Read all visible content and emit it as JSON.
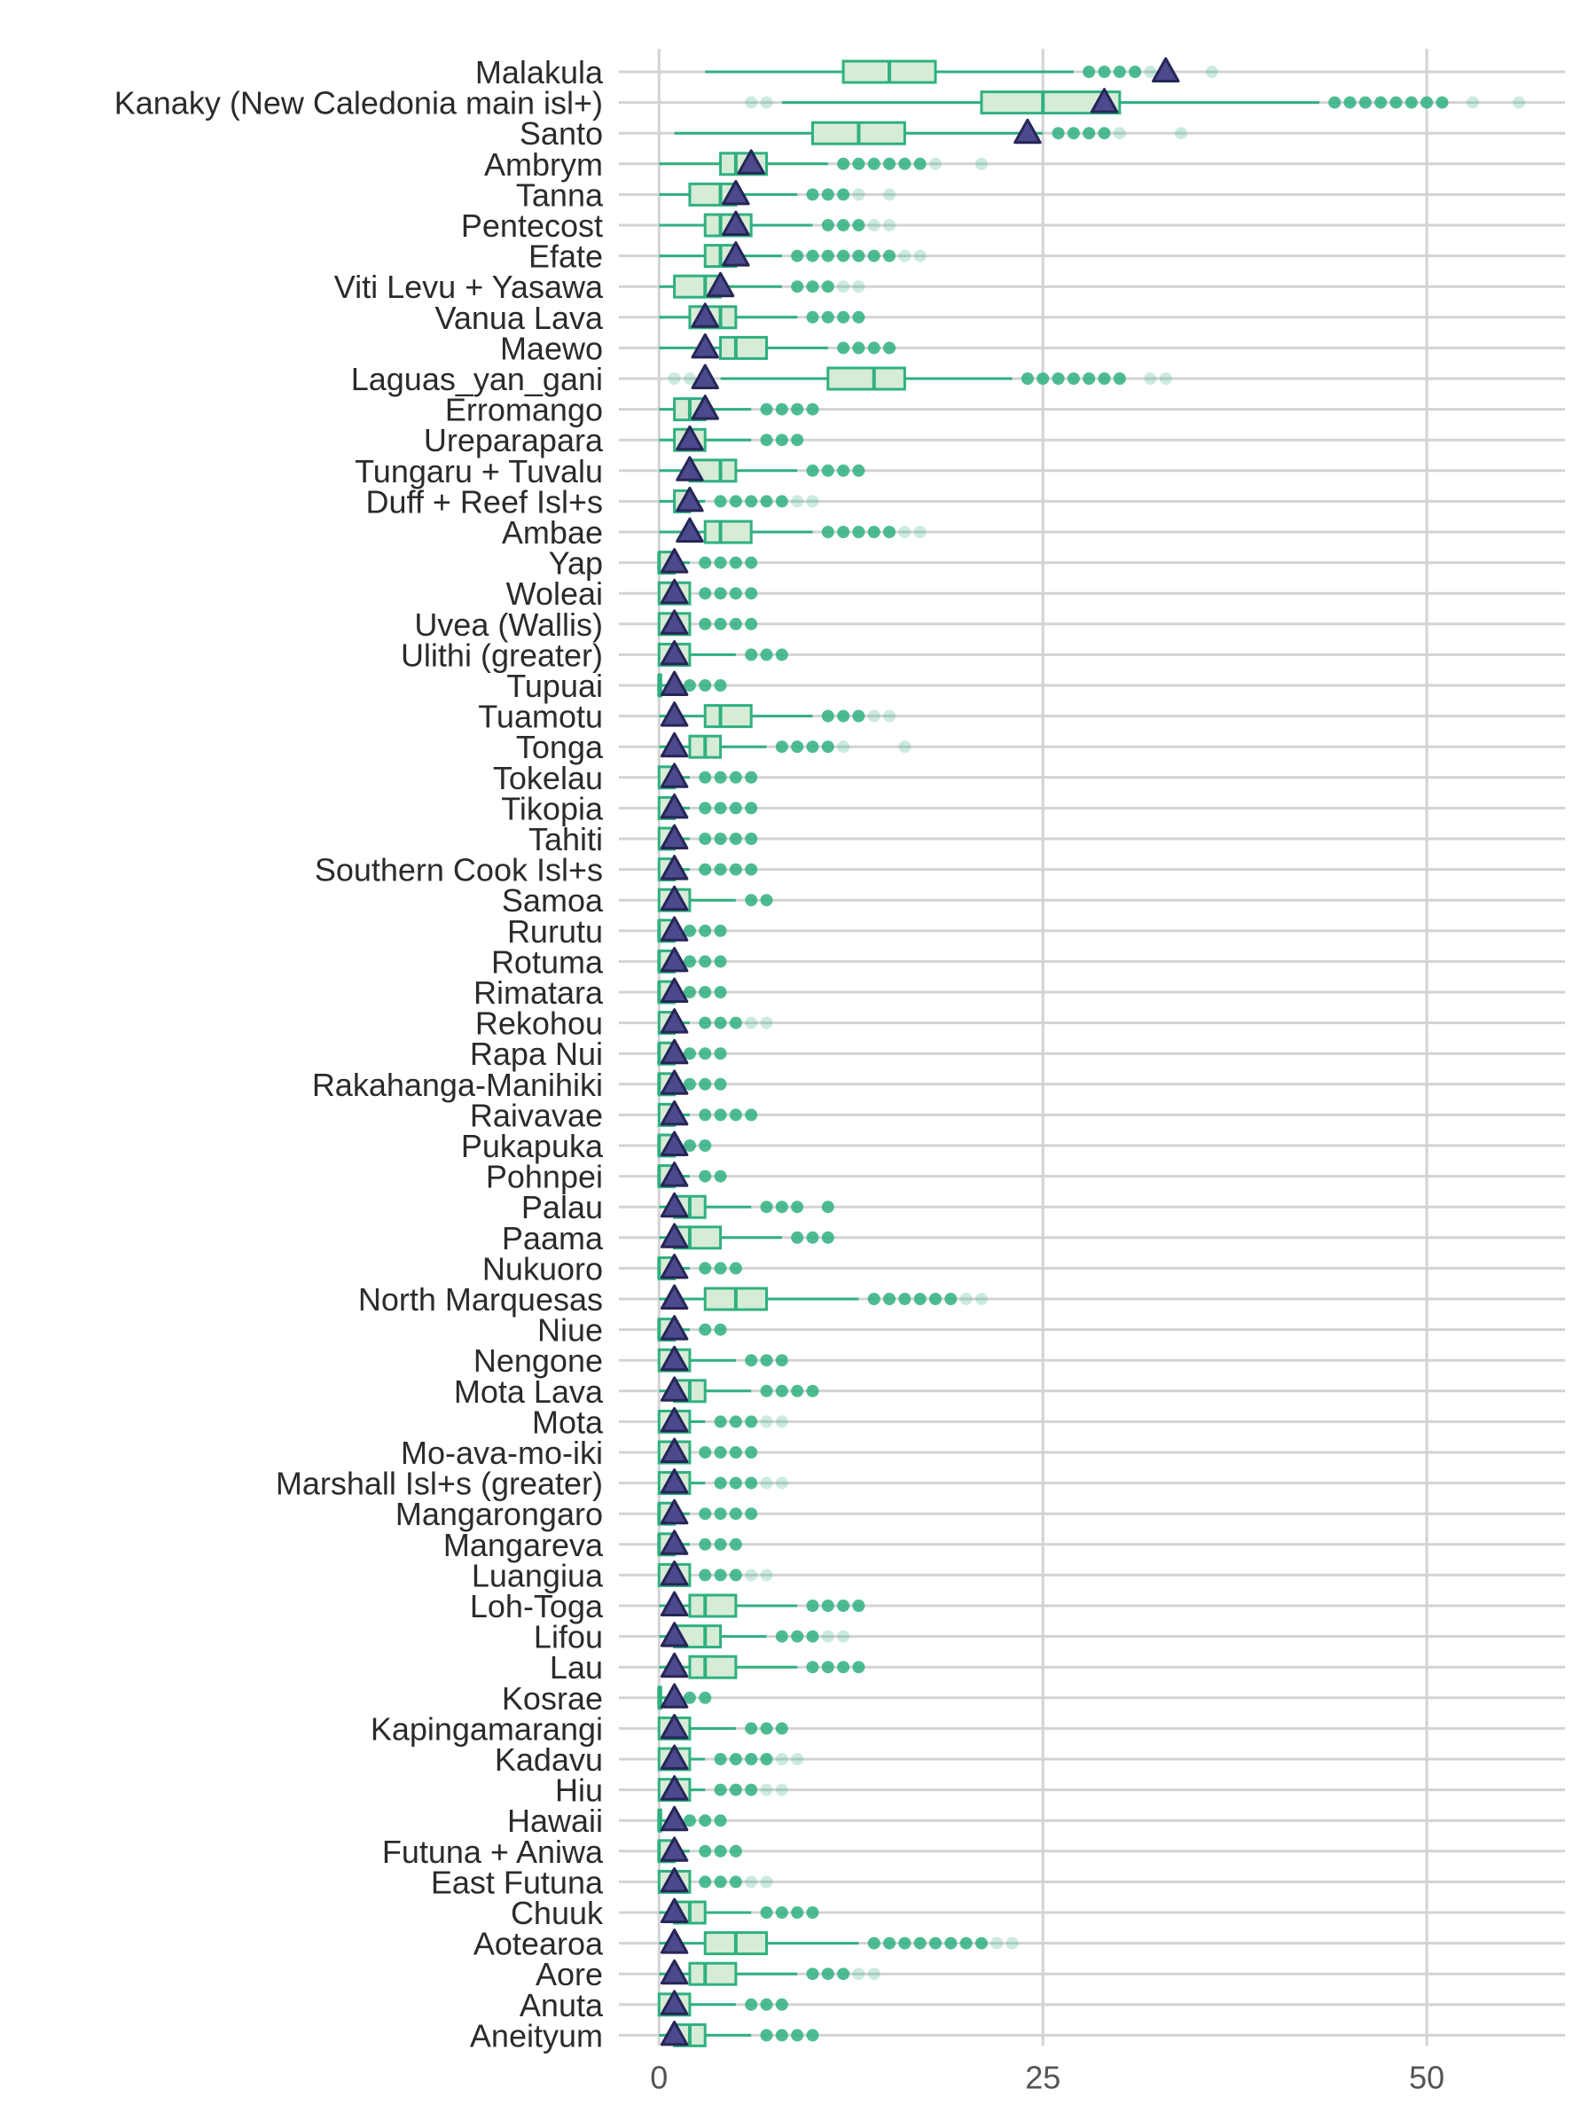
{
  "chart_data": {
    "type": "boxplot",
    "orientation": "horizontal",
    "title": "",
    "xlabel": "",
    "ylabel": "",
    "xlim": [
      -2.5,
      59
    ],
    "xticks": [
      0,
      25,
      50
    ],
    "xtick_labels": [
      "0",
      "25",
      "50"
    ],
    "grid": true,
    "legend": "none",
    "colors": {
      "box_fill": "#d6ecd6",
      "box_stroke": "#2fb07f",
      "whisker": "#2fb07f",
      "outlier": "#2fb07f",
      "mean_marker_fill": "#4a4a8c",
      "mean_marker_stroke": "#262657",
      "grid": "#d3d3d3"
    },
    "categories": [
      {
        "name": "Malakula",
        "q1": 12,
        "median": 15,
        "q3": 18,
        "wmin": 3,
        "wmax": 27,
        "mean": 33,
        "outliers": [
          28,
          29,
          30,
          31,
          32,
          36
        ]
      },
      {
        "name": "Kanaky (New Caledonia main isl+)",
        "q1": 21,
        "median": 25,
        "q3": 30,
        "wmin": 8,
        "wmax": 43,
        "mean": 29,
        "outliers": [
          6,
          7,
          44,
          45,
          46,
          47,
          48,
          49,
          50,
          51,
          53,
          56
        ]
      },
      {
        "name": "Santo",
        "q1": 10,
        "median": 13,
        "q3": 16,
        "wmin": 1,
        "wmax": 25,
        "mean": 24,
        "outliers": [
          26,
          27,
          28,
          29,
          30,
          34
        ]
      },
      {
        "name": "Ambrym",
        "q1": 4,
        "median": 5,
        "q3": 7,
        "wmin": 0,
        "wmax": 11,
        "mean": 6,
        "outliers": [
          12,
          13,
          14,
          15,
          16,
          17,
          18,
          21
        ]
      },
      {
        "name": "Tanna",
        "q1": 2,
        "median": 4,
        "q3": 5,
        "wmin": 0,
        "wmax": 9,
        "mean": 5,
        "outliers": [
          10,
          11,
          12,
          13,
          15
        ]
      },
      {
        "name": "Pentecost",
        "q1": 3,
        "median": 4,
        "q3": 6,
        "wmin": 0,
        "wmax": 10,
        "mean": 5,
        "outliers": [
          11,
          12,
          13,
          14,
          15
        ]
      },
      {
        "name": "Efate",
        "q1": 3,
        "median": 4,
        "q3": 5,
        "wmin": 0,
        "wmax": 8,
        "mean": 5,
        "outliers": [
          9,
          10,
          11,
          12,
          13,
          14,
          15,
          16,
          17
        ]
      },
      {
        "name": "Viti Levu + Yasawa",
        "q1": 1,
        "median": 3,
        "q3": 4,
        "wmin": 0,
        "wmax": 8,
        "mean": 4,
        "outliers": [
          9,
          10,
          11,
          12,
          13
        ]
      },
      {
        "name": "Vanua Lava",
        "q1": 2,
        "median": 4,
        "q3": 5,
        "wmin": 0,
        "wmax": 9,
        "mean": 3,
        "outliers": [
          10,
          11,
          12,
          13
        ]
      },
      {
        "name": "Maewo",
        "q1": 4,
        "median": 5,
        "q3": 7,
        "wmin": 0,
        "wmax": 11,
        "mean": 3,
        "outliers": [
          12,
          13,
          14,
          15
        ]
      },
      {
        "name": "Laguas_yan_gani",
        "q1": 11,
        "median": 14,
        "q3": 16,
        "wmin": 4,
        "wmax": 23,
        "mean": 3,
        "outliers": [
          1,
          2,
          24,
          25,
          26,
          27,
          28,
          29,
          30,
          32,
          33
        ]
      },
      {
        "name": "Erromango",
        "q1": 1,
        "median": 2,
        "q3": 3,
        "wmin": 0,
        "wmax": 6,
        "mean": 3,
        "outliers": [
          7,
          8,
          9,
          10
        ]
      },
      {
        "name": "Ureparapara",
        "q1": 1,
        "median": 2,
        "q3": 3,
        "wmin": 0,
        "wmax": 6,
        "mean": 2,
        "outliers": [
          7,
          8,
          9
        ]
      },
      {
        "name": "Tungaru + Tuvalu",
        "q1": 2,
        "median": 4,
        "q3": 5,
        "wmin": 0,
        "wmax": 9,
        "mean": 2,
        "outliers": [
          10,
          11,
          12,
          13
        ]
      },
      {
        "name": "Duff + Reef Isl+s",
        "q1": 1,
        "median": 2,
        "q3": 2,
        "wmin": 0,
        "wmax": 3,
        "mean": 2,
        "outliers": [
          4,
          5,
          6,
          7,
          8,
          9,
          10
        ]
      },
      {
        "name": "Ambae",
        "q1": 3,
        "median": 4,
        "q3": 6,
        "wmin": 0,
        "wmax": 10,
        "mean": 2,
        "outliers": [
          11,
          12,
          13,
          14,
          15,
          16,
          17
        ]
      },
      {
        "name": "Yap",
        "q1": 0,
        "median": 0,
        "q3": 1,
        "wmin": 0,
        "wmax": 2,
        "mean": 1,
        "outliers": [
          3,
          4,
          5,
          6
        ]
      },
      {
        "name": "Woleai",
        "q1": 0,
        "median": 1,
        "q3": 2,
        "wmin": 0,
        "wmax": 2,
        "mean": 1,
        "outliers": [
          3,
          4,
          5,
          6
        ]
      },
      {
        "name": "Uvea (Wallis)",
        "q1": 0,
        "median": 1,
        "q3": 2,
        "wmin": 0,
        "wmax": 2,
        "mean": 1,
        "outliers": [
          3,
          4,
          5,
          6
        ]
      },
      {
        "name": "Ulithi (greater)",
        "q1": 0,
        "median": 1,
        "q3": 2,
        "wmin": 0,
        "wmax": 5,
        "mean": 1,
        "outliers": [
          6,
          7,
          8
        ]
      },
      {
        "name": "Tupuai",
        "q1": 0,
        "median": 0,
        "q3": 0,
        "wmin": 0,
        "wmax": 1,
        "mean": 1,
        "outliers": [
          2,
          3,
          4
        ]
      },
      {
        "name": "Tuamotu",
        "q1": 3,
        "median": 4,
        "q3": 6,
        "wmin": 0,
        "wmax": 10,
        "mean": 1,
        "outliers": [
          11,
          12,
          13,
          14,
          15
        ]
      },
      {
        "name": "Tonga",
        "q1": 2,
        "median": 3,
        "q3": 4,
        "wmin": 0,
        "wmax": 7,
        "mean": 1,
        "outliers": [
          8,
          9,
          10,
          11,
          12,
          16
        ]
      },
      {
        "name": "Tokelau",
        "q1": 0,
        "median": 1,
        "q3": 1,
        "wmin": 0,
        "wmax": 2,
        "mean": 1,
        "outliers": [
          3,
          4,
          5,
          6
        ]
      },
      {
        "name": "Tikopia",
        "q1": 0,
        "median": 1,
        "q3": 1,
        "wmin": 0,
        "wmax": 2,
        "mean": 1,
        "outliers": [
          3,
          4,
          5,
          6
        ]
      },
      {
        "name": "Tahiti",
        "q1": 0,
        "median": 1,
        "q3": 1,
        "wmin": 0,
        "wmax": 2,
        "mean": 1,
        "outliers": [
          3,
          4,
          5,
          6
        ]
      },
      {
        "name": "Southern Cook Isl+s",
        "q1": 0,
        "median": 1,
        "q3": 1,
        "wmin": 0,
        "wmax": 2,
        "mean": 1,
        "outliers": [
          3,
          4,
          5,
          6
        ]
      },
      {
        "name": "Samoa",
        "q1": 0,
        "median": 1,
        "q3": 2,
        "wmin": 0,
        "wmax": 5,
        "mean": 1,
        "outliers": [
          6,
          7
        ]
      },
      {
        "name": "Rurutu",
        "q1": 0,
        "median": 0,
        "q3": 1,
        "wmin": 0,
        "wmax": 1,
        "mean": 1,
        "outliers": [
          2,
          3,
          4
        ]
      },
      {
        "name": "Rotuma",
        "q1": 0,
        "median": 0,
        "q3": 1,
        "wmin": 0,
        "wmax": 1,
        "mean": 1,
        "outliers": [
          2,
          3,
          4
        ]
      },
      {
        "name": "Rimatara",
        "q1": 0,
        "median": 0,
        "q3": 1,
        "wmin": 0,
        "wmax": 1,
        "mean": 1,
        "outliers": [
          2,
          3,
          4
        ]
      },
      {
        "name": "Rekohou",
        "q1": 0,
        "median": 1,
        "q3": 1,
        "wmin": 0,
        "wmax": 2,
        "mean": 1,
        "outliers": [
          3,
          4,
          5,
          6,
          7
        ]
      },
      {
        "name": "Rapa Nui",
        "q1": 0,
        "median": 0,
        "q3": 1,
        "wmin": 0,
        "wmax": 1,
        "mean": 1,
        "outliers": [
          2,
          3,
          4
        ]
      },
      {
        "name": "Rakahanga-Manihiki",
        "q1": 0,
        "median": 0,
        "q3": 1,
        "wmin": 0,
        "wmax": 1,
        "mean": 1,
        "outliers": [
          2,
          3,
          4
        ]
      },
      {
        "name": "Raivavae",
        "q1": 0,
        "median": 1,
        "q3": 1,
        "wmin": 0,
        "wmax": 2,
        "mean": 1,
        "outliers": [
          3,
          4,
          5,
          6
        ]
      },
      {
        "name": "Pukapuka",
        "q1": 0,
        "median": 0,
        "q3": 1,
        "wmin": 0,
        "wmax": 1,
        "mean": 1,
        "outliers": [
          2,
          3
        ]
      },
      {
        "name": "Pohnpei",
        "q1": 0,
        "median": 0,
        "q3": 1,
        "wmin": 0,
        "wmax": 2,
        "mean": 1,
        "outliers": [
          3,
          4
        ]
      },
      {
        "name": "Palau",
        "q1": 1,
        "median": 2,
        "q3": 3,
        "wmin": 0,
        "wmax": 6,
        "mean": 1,
        "outliers": [
          7,
          8,
          9,
          11
        ]
      },
      {
        "name": "Paama",
        "q1": 1,
        "median": 2,
        "q3": 4,
        "wmin": 0,
        "wmax": 8,
        "mean": 1,
        "outliers": [
          9,
          10,
          11
        ]
      },
      {
        "name": "Nukuoro",
        "q1": 0,
        "median": 0,
        "q3": 1,
        "wmin": 0,
        "wmax": 2,
        "mean": 1,
        "outliers": [
          3,
          4,
          5
        ]
      },
      {
        "name": "North Marquesas",
        "q1": 3,
        "median": 5,
        "q3": 7,
        "wmin": 0,
        "wmax": 13,
        "mean": 1,
        "outliers": [
          14,
          15,
          16,
          17,
          18,
          19,
          20,
          21
        ]
      },
      {
        "name": "Niue",
        "q1": 0,
        "median": 0,
        "q3": 1,
        "wmin": 0,
        "wmax": 2,
        "mean": 1,
        "outliers": [
          3,
          4
        ]
      },
      {
        "name": "Nengone",
        "q1": 0,
        "median": 1,
        "q3": 2,
        "wmin": 0,
        "wmax": 5,
        "mean": 1,
        "outliers": [
          6,
          7,
          8
        ]
      },
      {
        "name": "Mota Lava",
        "q1": 1,
        "median": 2,
        "q3": 3,
        "wmin": 0,
        "wmax": 6,
        "mean": 1,
        "outliers": [
          7,
          8,
          9,
          10
        ]
      },
      {
        "name": "Mota",
        "q1": 0,
        "median": 1,
        "q3": 2,
        "wmin": 0,
        "wmax": 3,
        "mean": 1,
        "outliers": [
          4,
          5,
          6,
          7,
          8
        ]
      },
      {
        "name": "Mo-ava-mo-iki",
        "q1": 0,
        "median": 1,
        "q3": 2,
        "wmin": 0,
        "wmax": 2,
        "mean": 1,
        "outliers": [
          3,
          4,
          5,
          6
        ]
      },
      {
        "name": "Marshall Isl+s (greater)",
        "q1": 0,
        "median": 1,
        "q3": 2,
        "wmin": 0,
        "wmax": 3,
        "mean": 1,
        "outliers": [
          4,
          5,
          6,
          7,
          8
        ]
      },
      {
        "name": "Mangarongaro",
        "q1": 0,
        "median": 0,
        "q3": 1,
        "wmin": 0,
        "wmax": 2,
        "mean": 1,
        "outliers": [
          3,
          4,
          5,
          6
        ]
      },
      {
        "name": "Mangareva",
        "q1": 0,
        "median": 0,
        "q3": 1,
        "wmin": 0,
        "wmax": 2,
        "mean": 1,
        "outliers": [
          3,
          4,
          5
        ]
      },
      {
        "name": "Luangiua",
        "q1": 0,
        "median": 1,
        "q3": 2,
        "wmin": 0,
        "wmax": 2,
        "mean": 1,
        "outliers": [
          3,
          4,
          5,
          6,
          7
        ]
      },
      {
        "name": "Loh-Toga",
        "q1": 2,
        "median": 3,
        "q3": 5,
        "wmin": 0,
        "wmax": 9,
        "mean": 1,
        "outliers": [
          10,
          11,
          12,
          13
        ]
      },
      {
        "name": "Lifou",
        "q1": 1,
        "median": 3,
        "q3": 4,
        "wmin": 0,
        "wmax": 7,
        "mean": 1,
        "outliers": [
          8,
          9,
          10,
          11,
          12
        ]
      },
      {
        "name": "Lau",
        "q1": 2,
        "median": 3,
        "q3": 5,
        "wmin": 0,
        "wmax": 9,
        "mean": 1,
        "outliers": [
          10,
          11,
          12,
          13
        ]
      },
      {
        "name": "Kosrae",
        "q1": 0,
        "median": 0,
        "q3": 0,
        "wmin": 0,
        "wmax": 1,
        "mean": 1,
        "outliers": [
          2,
          3
        ]
      },
      {
        "name": "Kapingamarangi",
        "q1": 0,
        "median": 1,
        "q3": 2,
        "wmin": 0,
        "wmax": 5,
        "mean": 1,
        "outliers": [
          6,
          7,
          8
        ]
      },
      {
        "name": "Kadavu",
        "q1": 0,
        "median": 1,
        "q3": 2,
        "wmin": 0,
        "wmax": 3,
        "mean": 1,
        "outliers": [
          4,
          5,
          6,
          7,
          8,
          9
        ]
      },
      {
        "name": "Hiu",
        "q1": 0,
        "median": 1,
        "q3": 2,
        "wmin": 0,
        "wmax": 3,
        "mean": 1,
        "outliers": [
          4,
          5,
          6,
          7,
          8
        ]
      },
      {
        "name": "Hawaii",
        "q1": 0,
        "median": 0,
        "q3": 0,
        "wmin": 0,
        "wmax": 1,
        "mean": 1,
        "outliers": [
          2,
          3,
          4
        ]
      },
      {
        "name": "Futuna + Aniwa",
        "q1": 0,
        "median": 0,
        "q3": 1,
        "wmin": 0,
        "wmax": 2,
        "mean": 1,
        "outliers": [
          3,
          4,
          5
        ]
      },
      {
        "name": "East Futuna",
        "q1": 0,
        "median": 1,
        "q3": 2,
        "wmin": 0,
        "wmax": 2,
        "mean": 1,
        "outliers": [
          3,
          4,
          5,
          6,
          7
        ]
      },
      {
        "name": "Chuuk",
        "q1": 1,
        "median": 2,
        "q3": 3,
        "wmin": 0,
        "wmax": 6,
        "mean": 1,
        "outliers": [
          7,
          8,
          9,
          10
        ]
      },
      {
        "name": "Aotearoa",
        "q1": 3,
        "median": 5,
        "q3": 7,
        "wmin": 0,
        "wmax": 13,
        "mean": 1,
        "outliers": [
          14,
          15,
          16,
          17,
          18,
          19,
          20,
          21,
          22,
          23
        ]
      },
      {
        "name": "Aore",
        "q1": 2,
        "median": 3,
        "q3": 5,
        "wmin": 0,
        "wmax": 9,
        "mean": 1,
        "outliers": [
          10,
          11,
          12,
          13,
          14
        ]
      },
      {
        "name": "Anuta",
        "q1": 0,
        "median": 1,
        "q3": 2,
        "wmin": 0,
        "wmax": 5,
        "mean": 1,
        "outliers": [
          6,
          7,
          8
        ]
      },
      {
        "name": "Aneityum",
        "q1": 1,
        "median": 2,
        "q3": 3,
        "wmin": 0,
        "wmax": 6,
        "mean": 1,
        "outliers": [
          7,
          8,
          9,
          10
        ]
      }
    ]
  }
}
